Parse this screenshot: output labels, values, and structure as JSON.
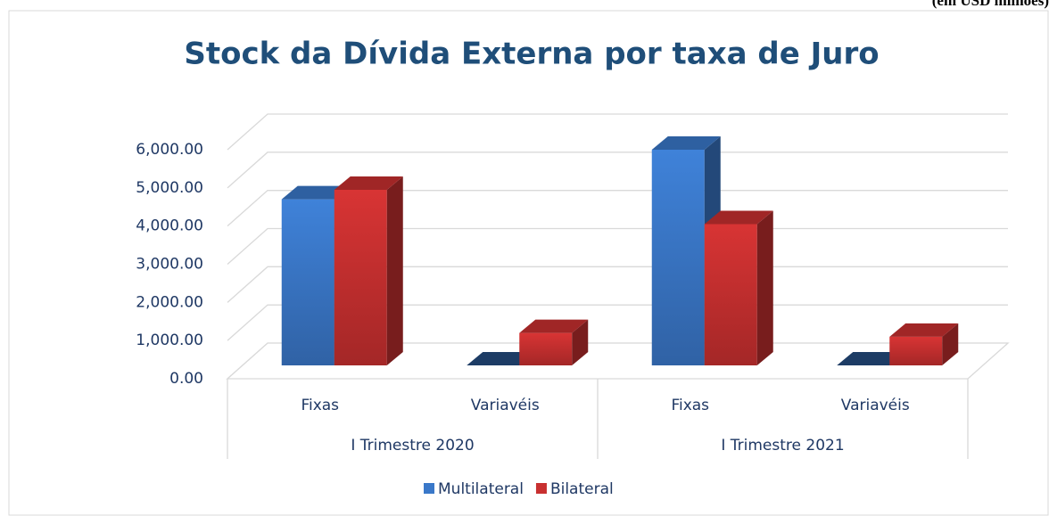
{
  "chart_data": {
    "type": "bar3d",
    "title": "Stock da Dívida Externa por taxa de Juro",
    "annotation": "(em USD milhões)",
    "categories": [
      "Fixas",
      "Variavéis",
      "Fixas",
      "Variavéis"
    ],
    "groups": [
      "I Trimestre 2020",
      "I Trimestre 2021"
    ],
    "series": [
      {
        "name": "Multilateral",
        "color": "#3a78c9",
        "values": [
          4350,
          0,
          5650,
          0
        ]
      },
      {
        "name": "Bilateral",
        "color": "#c83030",
        "values": [
          4600,
          850,
          3700,
          750
        ]
      }
    ],
    "ylim": [
      0,
      6000
    ],
    "yticks": [
      {
        "value": 0,
        "label": "0.00"
      },
      {
        "value": 1000,
        "label": "1,000.00"
      },
      {
        "value": 2000,
        "label": "2,000.00"
      },
      {
        "value": 3000,
        "label": "3,000.00"
      },
      {
        "value": 4000,
        "label": "4,000.00"
      },
      {
        "value": 5000,
        "label": "5,000.00"
      },
      {
        "value": 6000,
        "label": "6,000.00"
      }
    ],
    "grid": true,
    "legend": "bottom"
  }
}
